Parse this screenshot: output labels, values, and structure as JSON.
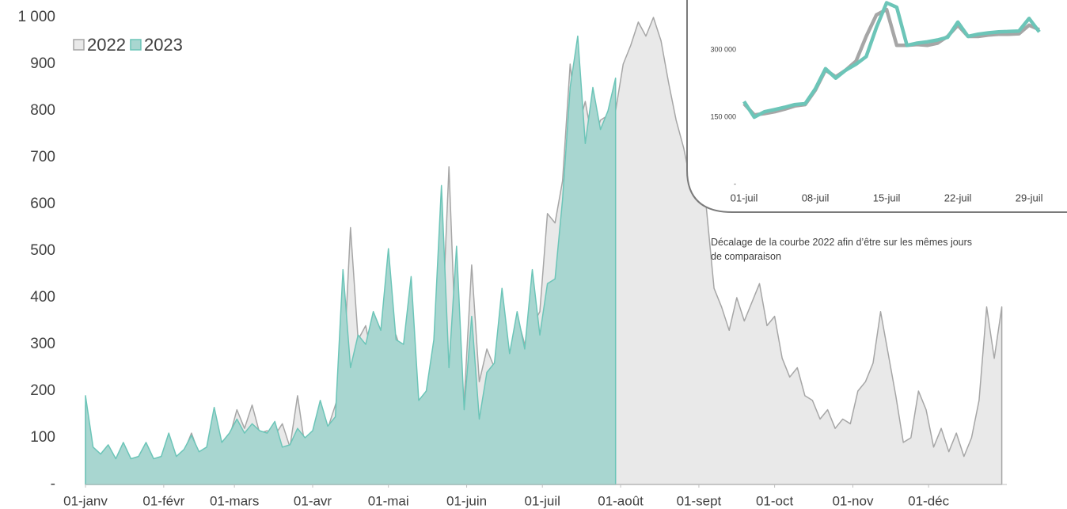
{
  "chart_data": [
    {
      "type": "area",
      "legend": "top-left",
      "x": [
        0,
        3,
        6,
        9,
        12,
        15,
        18,
        21,
        24,
        27,
        30,
        33,
        36,
        39,
        42,
        45,
        48,
        51,
        54,
        57,
        60,
        63,
        66,
        69,
        72,
        75,
        78,
        81,
        84,
        87,
        90,
        93,
        96,
        99,
        102,
        105,
        108,
        111,
        114,
        117,
        120,
        123,
        126,
        129,
        132,
        135,
        138,
        141,
        144,
        147,
        150,
        153,
        156,
        159,
        162,
        165,
        168,
        171,
        174,
        177,
        180,
        183,
        186,
        189,
        192,
        195,
        198,
        201,
        204,
        207,
        210,
        213,
        216,
        219,
        222,
        225,
        228,
        231,
        234,
        237,
        240,
        243,
        246,
        249,
        252,
        255,
        258,
        261,
        264,
        267,
        270,
        273,
        276,
        279,
        282,
        285,
        288,
        291,
        294,
        297,
        300,
        303,
        306,
        309,
        312,
        315,
        318,
        321,
        324,
        327,
        330,
        333,
        336,
        339,
        342,
        345,
        348,
        351,
        354,
        357,
        360,
        363
      ],
      "xlim": [
        0,
        365
      ],
      "xticks": [
        {
          "value": 0,
          "label": "01-janv"
        },
        {
          "value": 31,
          "label": "01-févr"
        },
        {
          "value": 59,
          "label": "01-mars"
        },
        {
          "value": 90,
          "label": "01-avr"
        },
        {
          "value": 120,
          "label": "01-mai"
        },
        {
          "value": 151,
          "label": "01-juin"
        },
        {
          "value": 181,
          "label": "01-juil"
        },
        {
          "value": 212,
          "label": "01-août"
        },
        {
          "value": 243,
          "label": "01-sept"
        },
        {
          "value": 273,
          "label": "01-oct"
        },
        {
          "value": 304,
          "label": "01-nov"
        },
        {
          "value": 334,
          "label": "01-déc"
        }
      ],
      "ylim": [
        0,
        1000
      ],
      "yticks": [
        {
          "value": 0,
          "label": "-"
        },
        100,
        200,
        300,
        400,
        500,
        600,
        700,
        800,
        900,
        {
          "value": 1000,
          "label": "1 000"
        }
      ],
      "series": [
        {
          "name": "2022",
          "color": "#a6a6a6",
          "fill": "#e9e9e9",
          "values": [
            170,
            70,
            60,
            70,
            50,
            85,
            55,
            55,
            85,
            50,
            60,
            95,
            55,
            70,
            110,
            65,
            75,
            145,
            80,
            100,
            160,
            120,
            170,
            110,
            115,
            105,
            130,
            80,
            190,
            80,
            90,
            110,
            120,
            170,
            220,
            550,
            310,
            340,
            260,
            300,
            340,
            320,
            270,
            280,
            170,
            200,
            230,
            300,
            680,
            250,
            180,
            470,
            220,
            290,
            250,
            330,
            260,
            360,
            300,
            340,
            370,
            580,
            560,
            650,
            900,
            760,
            820,
            730,
            780,
            790,
            800,
            900,
            940,
            990,
            960,
            1000,
            950,
            860,
            780,
            720,
            640,
            690,
            590,
            420,
            380,
            330,
            400,
            350,
            390,
            430,
            340,
            360,
            270,
            230,
            250,
            190,
            180,
            140,
            160,
            120,
            140,
            130,
            200,
            220,
            260,
            370,
            280,
            190,
            90,
            100,
            200,
            160,
            80,
            120,
            70,
            110,
            60,
            100,
            180,
            380,
            270,
            380
          ]
        },
        {
          "name": "2023",
          "color": "#6cc5b8",
          "fill": "#a8d6d0",
          "values": [
            190,
            80,
            65,
            85,
            55,
            90,
            55,
            60,
            90,
            55,
            60,
            110,
            60,
            75,
            105,
            70,
            80,
            165,
            90,
            110,
            140,
            110,
            130,
            115,
            110,
            135,
            80,
            85,
            120,
            100,
            115,
            180,
            125,
            145,
            460,
            250,
            320,
            300,
            370,
            330,
            505,
            310,
            300,
            445,
            180,
            200,
            310,
            640,
            250,
            510,
            160,
            360,
            140,
            240,
            260,
            420,
            280,
            370,
            290,
            460,
            320,
            430,
            440,
            610,
            850,
            960,
            730,
            850,
            760,
            800,
            870,
            null,
            null,
            null,
            null,
            null,
            null,
            null,
            null,
            null,
            null,
            null,
            null,
            null,
            null,
            null,
            null,
            null,
            null,
            null,
            null,
            null,
            null,
            null,
            null,
            null,
            null,
            null,
            null,
            null,
            null,
            null,
            null,
            null,
            null,
            null,
            null,
            null,
            null,
            null,
            null,
            null,
            null,
            null,
            null,
            null,
            null,
            null,
            null,
            null,
            null,
            null
          ]
        }
      ]
    },
    {
      "type": "line",
      "annotation": "Décalage de la courbe 2022 afin d’être sur les mêmes jours de comparaison",
      "x": [
        1,
        2,
        3,
        4,
        5,
        6,
        7,
        8,
        9,
        10,
        11,
        12,
        13,
        14,
        15,
        16,
        17,
        18,
        19,
        20,
        21,
        22,
        23,
        24,
        25,
        26,
        27,
        28,
        29,
        30
      ],
      "xlim": [
        1,
        30
      ],
      "xticks": [
        {
          "value": 1,
          "label": "01-juil"
        },
        {
          "value": 8,
          "label": "08-juil"
        },
        {
          "value": 15,
          "label": "15-juil"
        },
        {
          "value": 22,
          "label": "22-juil"
        },
        {
          "value": 29,
          "label": "29-juil"
        }
      ],
      "ylim": [
        0,
        450000
      ],
      "yticks": [
        {
          "value": 0,
          "label": "-"
        },
        {
          "value": 150000,
          "label": "150 000"
        },
        {
          "value": 300000,
          "label": "300 000"
        }
      ],
      "series": [
        {
          "name": "2022",
          "color": "#a6a6a6",
          "values": [
            180000,
            155000,
            158000,
            162000,
            168000,
            175000,
            178000,
            210000,
            255000,
            240000,
            255000,
            275000,
            330000,
            378000,
            390000,
            310000,
            310000,
            312000,
            310000,
            315000,
            330000,
            355000,
            330000,
            330000,
            333000,
            335000,
            335000,
            336000,
            355000,
            345000
          ]
        },
        {
          "name": "2023",
          "color": "#6cc5b8",
          "values": [
            185000,
            150000,
            162000,
            167000,
            172000,
            178000,
            180000,
            213000,
            258000,
            237000,
            255000,
            268000,
            285000,
            350000,
            405000,
            395000,
            310000,
            315000,
            318000,
            322000,
            328000,
            362000,
            330000,
            335000,
            338000,
            340000,
            341000,
            342000,
            370000,
            340000
          ]
        }
      ]
    }
  ]
}
